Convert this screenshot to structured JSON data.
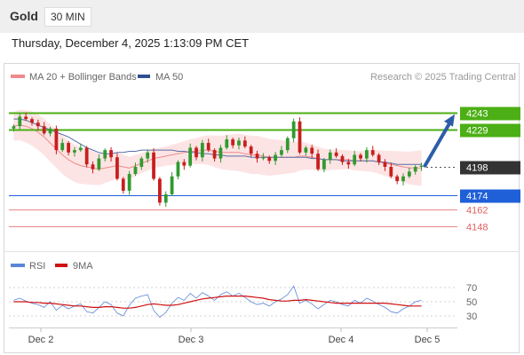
{
  "header": {
    "symbol": "Gold",
    "timeframe": "30 MIN"
  },
  "timestamp": "Thursday, December 4, 2025 1:13:09 PM CET",
  "legend": {
    "items": [
      {
        "label": "MA 20 + Bollinger Bands",
        "color": "#f08a8a"
      },
      {
        "label": "MA 50",
        "color": "#2f4f8f"
      }
    ],
    "credit": "Research © 2025 Trading Central"
  },
  "colors": {
    "resistance": "#4caf15",
    "support": "#1f5fd8",
    "support_weak": "#e06060",
    "price_tag": "#333333",
    "candle_up": "#2f9a2f",
    "candle_down": "#c81e1e",
    "band_fill": "#fde4e4",
    "ma20": "#f08a8a",
    "ma50": "#5a6ea8",
    "arrow": "#2c5ea8",
    "rsi": "#5b86d8",
    "rsi_ma": "#d01010"
  },
  "chart_data": [
    {
      "type": "candlestick",
      "title": "Gold 30 MIN",
      "ylim": [
        4143,
        4250
      ],
      "x_ticks": [
        "Dec 2",
        "Dec 3",
        "Dec 4",
        "Dec 5"
      ],
      "current_price": 4198,
      "levels": [
        {
          "value": 4243,
          "label": "4243",
          "kind": "resistance"
        },
        {
          "value": 4229,
          "label": "4229",
          "kind": "resistance"
        },
        {
          "value": 4198,
          "label": "4198",
          "kind": "price"
        },
        {
          "value": 4174,
          "label": "4174",
          "kind": "support"
        },
        {
          "value": 4162,
          "label": "4162",
          "kind": "support_weak"
        },
        {
          "value": 4148,
          "label": "4148",
          "kind": "support_weak"
        }
      ],
      "projection": {
        "from": 4199,
        "to": 4242
      },
      "series": [
        {
          "name": "Price",
          "close_path": [
            4232,
            4240,
            4238,
            4235,
            4232,
            4226,
            4230,
            4212,
            4218,
            4210,
            4212,
            4214,
            4200,
            4196,
            4205,
            4212,
            4206,
            4188,
            4178,
            4192,
            4198,
            4205,
            4210,
            4188,
            4168,
            4175,
            4190,
            4202,
            4199,
            4214,
            4206,
            4218,
            4212,
            4205,
            4214,
            4221,
            4216,
            4220,
            4215,
            4209,
            4205,
            4206,
            4203,
            4208,
            4212,
            4222,
            4236,
            4210,
            4214,
            4209,
            4196,
            4204,
            4210,
            4207,
            4202,
            4200,
            4208,
            4205,
            4212,
            4208,
            4202,
            4198,
            4190,
            4186,
            4190,
            4194,
            4198,
            4199
          ]
        },
        {
          "name": "MA 20",
          "values": [
            4232,
            4233,
            4232,
            4230,
            4227,
            4223,
            4218,
            4213,
            4208,
            4204,
            4201,
            4199,
            4198,
            4197,
            4196,
            4197,
            4198,
            4199,
            4198,
            4197,
            4199,
            4201,
            4203,
            4205,
            4206,
            4207,
            4208,
            4209,
            4210,
            4211,
            4211,
            4212,
            4212,
            4211,
            4210,
            4210,
            4210,
            4210,
            4209,
            4208,
            4208,
            4207,
            4206,
            4206,
            4206,
            4206,
            4206,
            4207,
            4207,
            4206,
            4205,
            4204,
            4204,
            4204,
            4204,
            4204,
            4203,
            4203,
            4203,
            4203,
            4202,
            4201,
            4200,
            4199,
            4198,
            4197,
            4197,
            4197
          ]
        },
        {
          "name": "MA 50",
          "values": [
            4238,
            4238,
            4237,
            4235,
            4233,
            4231,
            4229,
            4227,
            4225,
            4223,
            4220,
            4217,
            4214,
            4212,
            4210,
            4209,
            4209,
            4210,
            4210,
            4211,
            4211,
            4212,
            4212,
            4212,
            4212,
            4212,
            4212,
            4211,
            4211,
            4210,
            4210,
            4209,
            4209,
            4208,
            4208,
            4207,
            4207,
            4207,
            4207,
            4206,
            4206,
            4206,
            4206,
            4206,
            4206,
            4206,
            4206,
            4206,
            4206,
            4205,
            4205,
            4204,
            4204,
            4204,
            4203,
            4203,
            4203,
            4203,
            4203,
            4203,
            4202,
            4202,
            4201,
            4200,
            4200,
            4200,
            4200,
            4200
          ]
        }
      ]
    },
    {
      "type": "line",
      "title": "RSI",
      "ylim": [
        20,
        80
      ],
      "y_ticks": [
        70,
        50,
        30
      ],
      "series": [
        {
          "name": "RSI",
          "values": [
            52,
            55,
            51,
            48,
            46,
            42,
            50,
            38,
            45,
            40,
            44,
            47,
            36,
            34,
            42,
            50,
            46,
            34,
            30,
            45,
            55,
            58,
            60,
            38,
            28,
            35,
            48,
            56,
            52,
            62,
            55,
            63,
            58,
            52,
            60,
            64,
            58,
            62,
            56,
            50,
            46,
            48,
            44,
            50,
            54,
            60,
            72,
            48,
            52,
            47,
            40,
            46,
            52,
            50,
            46,
            44,
            52,
            48,
            55,
            51,
            46,
            42,
            36,
            34,
            40,
            44,
            50,
            52
          ]
        },
        {
          "name": "9MA",
          "values": [
            50,
            50,
            50,
            49,
            49,
            48,
            48,
            47,
            46,
            45,
            44,
            44,
            43,
            42,
            42,
            43,
            43,
            42,
            41,
            41,
            42,
            44,
            46,
            47,
            46,
            45,
            45,
            46,
            48,
            50,
            52,
            54,
            55,
            56,
            57,
            58,
            58,
            58,
            58,
            57,
            56,
            55,
            53,
            52,
            51,
            51,
            52,
            52,
            53,
            52,
            51,
            50,
            49,
            48,
            48,
            48,
            48,
            48,
            48,
            48,
            48,
            48,
            47,
            46,
            45,
            44,
            44,
            44
          ]
        }
      ]
    }
  ]
}
